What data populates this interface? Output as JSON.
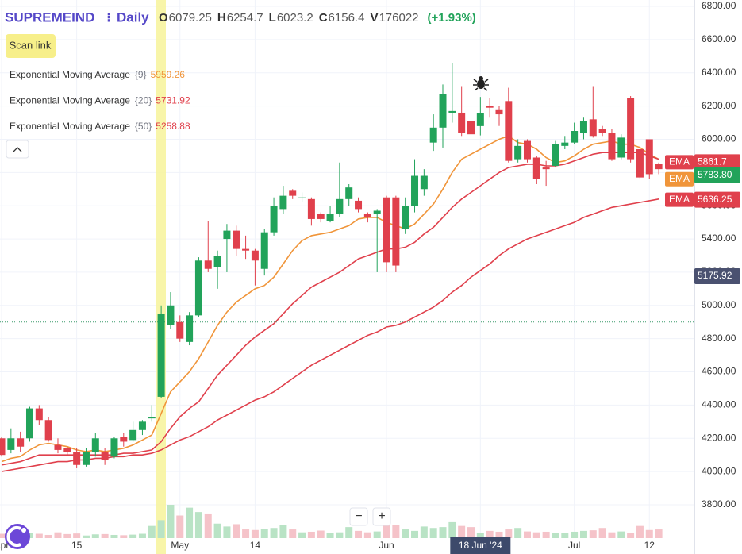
{
  "chart_data": {
    "type": "candlestick",
    "title": "SUPREMEIND",
    "interval": "Daily",
    "ohlc": [
      {
        "key": "O",
        "value": 6079.25
      },
      {
        "key": "H",
        "value": 6254.7
      },
      {
        "key": "L",
        "value": 6023.2
      },
      {
        "key": "C",
        "value": 6156.4
      },
      {
        "key": "V",
        "value": 176022
      }
    ],
    "change": "(+1.93%)",
    "scan_link": "Scan link",
    "zoom_out": "−",
    "zoom_in": "+",
    "categories": [
      "Apr",
      null,
      null,
      null,
      null,
      null,
      null,
      null,
      "15",
      null,
      null,
      null,
      null,
      null,
      null,
      null,
      null,
      null,
      null,
      "May",
      null,
      null,
      null,
      null,
      null,
      null,
      null,
      "14",
      null,
      null,
      null,
      null,
      null,
      null,
      null,
      null,
      null,
      null,
      null,
      null,
      null,
      "Jun",
      null,
      null,
      null,
      null,
      null,
      null,
      null,
      null,
      null,
      "18 Jun '24",
      null,
      null,
      null,
      null,
      null,
      null,
      null,
      null,
      null,
      "Jul",
      null,
      null,
      null,
      null,
      null,
      null,
      null,
      "12",
      null
    ],
    "open": [
      4200,
      4130,
      4200,
      4200,
      4380,
      4310,
      4160,
      4140,
      4120,
      4040,
      4120,
      4120,
      4090,
      4210,
      4190,
      4250,
      4320,
      4450,
      4880,
      4900,
      4780,
      4940,
      5270,
      5230,
      5400,
      5450,
      5340,
      5330,
      5220,
      5440,
      5580,
      5690,
      5650,
      5640,
      5550,
      5510,
      5550,
      5640,
      5630,
      5550,
      5550,
      5650,
      5650,
      5460,
      5600,
      5700,
      5980,
      6070,
      6160,
      6160,
      6110,
      6079.25,
      6200,
      6180,
      6230,
      5880,
      5990,
      5890,
      5830,
      5840,
      5960,
      5980,
      6040,
      6120,
      6060,
      6040,
      5890,
      6250,
      5940,
      6000,
      5850
    ],
    "high": [
      4210,
      4260,
      4240,
      4390,
      4400,
      4330,
      4200,
      4150,
      4140,
      4140,
      4230,
      4140,
      4210,
      4230,
      4300,
      4310,
      4400,
      5000,
      5080,
      4940,
      4960,
      5290,
      5510,
      5330,
      5490,
      5480,
      5420,
      5340,
      5460,
      5650,
      5720,
      5700,
      5680,
      5650,
      5560,
      5600,
      5860,
      5730,
      5650,
      5560,
      5580,
      5660,
      5660,
      5650,
      5880,
      5820,
      6150,
      6330,
      6460,
      6320,
      6240,
      6254.7,
      6250,
      6200,
      6310,
      6000,
      6000,
      5900,
      5870,
      5990,
      6020,
      6100,
      6130,
      6320,
      6080,
      6060,
      6030,
      6260,
      5960,
      6000,
      5860
    ],
    "low": [
      4090,
      4110,
      4120,
      4180,
      4280,
      4180,
      4110,
      4100,
      4020,
      4030,
      4090,
      4040,
      4080,
      4150,
      4180,
      4220,
      4300,
      4440,
      4860,
      4780,
      4760,
      4930,
      5200,
      5100,
      5200,
      5300,
      5280,
      5120,
      5180,
      5420,
      5550,
      5640,
      5620,
      5480,
      5500,
      5500,
      5530,
      5600,
      5560,
      5500,
      5200,
      5200,
      5200,
      5430,
      5560,
      5660,
      5930,
      5950,
      6100,
      6020,
      5980,
      6023.2,
      6130,
      6080,
      5860,
      5860,
      5860,
      5730,
      5720,
      5830,
      5940,
      5970,
      6000,
      6010,
      6020,
      5870,
      5880,
      5860,
      5760,
      5760,
      5790
    ],
    "close": [
      4100,
      4200,
      4150,
      4380,
      4310,
      4190,
      4130,
      4120,
      4040,
      4120,
      4200,
      4070,
      4200,
      4180,
      4250,
      4300,
      4330,
      4950,
      5000,
      4800,
      4940,
      5270,
      5220,
      5300,
      5450,
      5340,
      5330,
      5270,
      5440,
      5600,
      5660,
      5660,
      5650,
      5520,
      5520,
      5550,
      5640,
      5710,
      5580,
      5530,
      5570,
      5260,
      5240,
      5600,
      5780,
      5780,
      6070,
      6270,
      6170,
      6040,
      6030,
      6156.4,
      6190,
      6150,
      5870,
      5960,
      5880,
      5760,
      5820,
      5970,
      5980,
      6050,
      6110,
      6020,
      6040,
      5880,
      6010,
      5880,
      5770,
      5790,
      5820
    ],
    "volume": [
      150000,
      120000,
      100000,
      180000,
      150000,
      110000,
      200000,
      140000,
      160000,
      90000,
      130000,
      140000,
      110000,
      100000,
      120000,
      150000,
      420000,
      620000,
      1150000,
      780000,
      1050000,
      900000,
      850000,
      500000,
      400000,
      480000,
      300000,
      280000,
      320000,
      350000,
      450000,
      300000,
      200000,
      220000,
      260000,
      180000,
      200000,
      380000,
      250000,
      200000,
      230000,
      550000,
      450000,
      300000,
      250000,
      400000,
      350000,
      380000,
      550000,
      420000,
      380000,
      176022,
      250000,
      220000,
      300000,
      350000,
      230000,
      200000,
      220000,
      180000,
      190000,
      220000,
      250000,
      270000,
      350000,
      200000,
      230000,
      180000,
      420000,
      280000,
      300000
    ],
    "up_color": "#22a35a",
    "down_color": "#e0404c",
    "series": [
      {
        "name": "Exponential Moving Average",
        "param": "{9}",
        "last": 5959.26,
        "color": "#f0953a",
        "values": [
          4060,
          4080,
          4090,
          4130,
          4160,
          4170,
          4160,
          4150,
          4130,
          4120,
          4130,
          4120,
          4130,
          4140,
          4160,
          4190,
          4220,
          4350,
          4480,
          4540,
          4600,
          4680,
          4780,
          4880,
          4960,
          5020,
          5060,
          5100,
          5120,
          5170,
          5250,
          5330,
          5390,
          5420,
          5430,
          5440,
          5460,
          5480,
          5520,
          5530,
          5530,
          5500,
          5480,
          5460,
          5490,
          5550,
          5610,
          5700,
          5800,
          5880,
          5910,
          5940,
          5970,
          6000,
          6020,
          5980,
          5970,
          5940,
          5890,
          5860,
          5870,
          5900,
          5940,
          5970,
          5980,
          5990,
          5970,
          5970,
          5950,
          5910,
          5880
        ]
      },
      {
        "name": "Exponential Moving Average",
        "param": "{20}",
        "last": 5731.92,
        "color": "#e0404c",
        "values": [
          4040,
          4050,
          4060,
          4080,
          4100,
          4100,
          4100,
          4100,
          4100,
          4100,
          4100,
          4100,
          4100,
          4110,
          4110,
          4120,
          4130,
          4180,
          4260,
          4330,
          4380,
          4420,
          4500,
          4580,
          4640,
          4700,
          4760,
          4810,
          4850,
          4890,
          4950,
          5010,
          5060,
          5110,
          5140,
          5170,
          5200,
          5240,
          5280,
          5300,
          5320,
          5340,
          5340,
          5350,
          5380,
          5430,
          5470,
          5530,
          5590,
          5640,
          5680,
          5720,
          5760,
          5800,
          5830,
          5840,
          5850,
          5850,
          5840,
          5840,
          5850,
          5870,
          5890,
          5910,
          5920,
          5920,
          5920,
          5920,
          5920,
          5900,
          5880
        ]
      },
      {
        "name": "Exponential Moving Average",
        "param": "{50}",
        "last": 5258.88,
        "color": "#e0404c",
        "values": [
          4000,
          4010,
          4020,
          4030,
          4040,
          4050,
          4060,
          4060,
          4070,
          4070,
          4080,
          4080,
          4090,
          4090,
          4100,
          4100,
          4110,
          4130,
          4160,
          4190,
          4210,
          4240,
          4270,
          4310,
          4340,
          4370,
          4400,
          4430,
          4450,
          4480,
          4520,
          4560,
          4600,
          4640,
          4670,
          4700,
          4730,
          4760,
          4790,
          4820,
          4840,
          4870,
          4880,
          4900,
          4930,
          4960,
          4990,
          5030,
          5080,
          5120,
          5170,
          5210,
          5250,
          5300,
          5340,
          5370,
          5400,
          5420,
          5440,
          5460,
          5480,
          5500,
          5530,
          5550,
          5570,
          5590,
          5600,
          5610,
          5620,
          5630,
          5640
        ]
      }
    ],
    "price_tags": [
      {
        "name": "EMA",
        "value": 5861.7,
        "label": "5861.7",
        "color": "#e0404c"
      },
      {
        "name": "EMA",
        "value": 5783.8,
        "label": "5783.80",
        "color": "#f0953a",
        "box_color": "#22a35a"
      },
      {
        "name": "EMA",
        "value": 5636.25,
        "label": "5636.25",
        "color": "#e0404c"
      },
      {
        "value": 5175.92,
        "label": "5175.92",
        "color": "#4a5170"
      }
    ],
    "reference_line": 4900,
    "ylim": [
      3800,
      6800
    ],
    "yticks": [
      {
        "value": 3800,
        "label": "3800.00"
      },
      {
        "value": 4000,
        "label": "4000.00"
      },
      {
        "value": 4200,
        "label": "4200.00"
      },
      {
        "value": 4400,
        "label": "4400.00"
      },
      {
        "value": 4600,
        "label": "4600.00"
      },
      {
        "value": 4800,
        "label": "4800.00"
      },
      {
        "value": 5000,
        "label": "5000.00"
      },
      {
        "value": 5200,
        "label": "5200.00"
      },
      {
        "value": 5400,
        "label": "5400.00"
      },
      {
        "value": 5600,
        "label": "5600.00"
      },
      {
        "value": 5800,
        "label": "5800.00"
      },
      {
        "value": 6000,
        "label": "6000.00"
      },
      {
        "value": 6200,
        "label": "6200.00"
      },
      {
        "value": 6400,
        "label": "6400.00"
      },
      {
        "value": 6600,
        "label": "6600.00"
      },
      {
        "value": 6800,
        "label": "6800.00"
      }
    ],
    "grid": true
  }
}
